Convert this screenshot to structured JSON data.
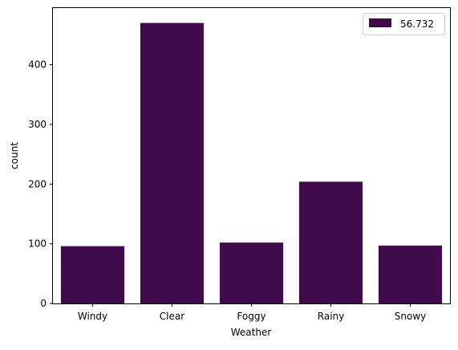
{
  "chart_data": {
    "type": "bar",
    "categories": [
      "Windy",
      "Clear",
      "Foggy",
      "Rainy",
      "Snowy"
    ],
    "series": [
      {
        "name": "56.732",
        "values": [
          96,
          470,
          102,
          204,
          97
        ],
        "color": "#3f0b4a"
      }
    ],
    "xlabel": "Weather",
    "ylabel": "count",
    "ylim": [
      0,
      495
    ],
    "yticks": [
      0,
      100,
      200,
      300,
      400
    ],
    "grid": false,
    "legend_position": "top-right"
  }
}
